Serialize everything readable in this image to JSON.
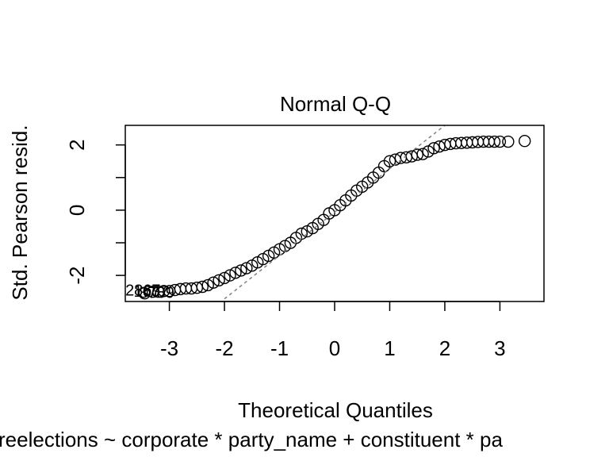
{
  "chart_data": {
    "type": "scatter",
    "title": "Normal Q-Q",
    "xlabel": "Theoretical Quantiles",
    "ylabel": "Std. Pearson resid.",
    "subtitle": "reelections ~ corporate * party_name + constituent * pa",
    "xlim": [
      -3.8,
      3.8
    ],
    "ylim": [
      -2.8,
      2.6
    ],
    "x_ticks": [
      -3,
      -2,
      -1,
      0,
      1,
      2,
      3
    ],
    "x_tick_labels": [
      "-3",
      "-2",
      "-1",
      "0",
      "1",
      "2",
      "3"
    ],
    "y_ticks": [
      -2,
      -1,
      0,
      1,
      2
    ],
    "y_tick_labels": [
      "-2",
      "0",
      "2"
    ],
    "y_tick_label_values": [
      -2,
      0,
      2
    ],
    "reference_line": {
      "x": [
        -2.0,
        2.0
      ],
      "y": [
        -2.72,
        2.65
      ]
    },
    "point_labels": [
      {
        "text": "2867",
        "x": -3.45,
        "y": -2.45
      },
      {
        "text": "3789",
        "x": -3.2,
        "y": -2.52
      },
      {
        "text": "1637",
        "x": -3.3,
        "y": -2.48
      }
    ],
    "series": [
      {
        "points": [
          [
            -3.45,
            -2.55
          ],
          [
            -3.3,
            -2.5
          ],
          [
            -3.2,
            -2.5
          ],
          [
            -3.1,
            -2.48
          ],
          [
            -3.0,
            -2.48
          ],
          [
            -2.9,
            -2.45
          ],
          [
            -2.8,
            -2.42
          ],
          [
            -2.7,
            -2.4
          ],
          [
            -2.6,
            -2.4
          ],
          [
            -2.5,
            -2.38
          ],
          [
            -2.4,
            -2.35
          ],
          [
            -2.3,
            -2.3
          ],
          [
            -2.2,
            -2.22
          ],
          [
            -2.1,
            -2.15
          ],
          [
            -2.0,
            -2.08
          ],
          [
            -1.9,
            -2.0
          ],
          [
            -1.8,
            -1.92
          ],
          [
            -1.7,
            -1.85
          ],
          [
            -1.6,
            -1.78
          ],
          [
            -1.5,
            -1.7
          ],
          [
            -1.4,
            -1.6
          ],
          [
            -1.3,
            -1.5
          ],
          [
            -1.2,
            -1.4
          ],
          [
            -1.1,
            -1.3
          ],
          [
            -1.0,
            -1.2
          ],
          [
            -0.9,
            -1.1
          ],
          [
            -0.8,
            -1.0
          ],
          [
            -0.7,
            -0.85
          ],
          [
            -0.6,
            -0.72
          ],
          [
            -0.5,
            -0.65
          ],
          [
            -0.4,
            -0.55
          ],
          [
            -0.3,
            -0.42
          ],
          [
            -0.2,
            -0.3
          ],
          [
            -0.1,
            -0.1
          ],
          [
            0.0,
            0.0
          ],
          [
            0.1,
            0.15
          ],
          [
            0.2,
            0.3
          ],
          [
            0.3,
            0.45
          ],
          [
            0.4,
            0.6
          ],
          [
            0.5,
            0.72
          ],
          [
            0.6,
            0.85
          ],
          [
            0.7,
            1.0
          ],
          [
            0.8,
            1.15
          ],
          [
            0.9,
            1.35
          ],
          [
            1.0,
            1.5
          ],
          [
            1.1,
            1.55
          ],
          [
            1.2,
            1.6
          ],
          [
            1.3,
            1.62
          ],
          [
            1.4,
            1.65
          ],
          [
            1.5,
            1.7
          ],
          [
            1.6,
            1.72
          ],
          [
            1.7,
            1.8
          ],
          [
            1.8,
            1.9
          ],
          [
            1.9,
            1.95
          ],
          [
            2.0,
            2.0
          ],
          [
            2.1,
            2.03
          ],
          [
            2.2,
            2.05
          ],
          [
            2.3,
            2.06
          ],
          [
            2.4,
            2.07
          ],
          [
            2.5,
            2.08
          ],
          [
            2.6,
            2.09
          ],
          [
            2.7,
            2.1
          ],
          [
            2.8,
            2.1
          ],
          [
            2.9,
            2.1
          ],
          [
            3.0,
            2.1
          ],
          [
            3.15,
            2.1
          ],
          [
            3.45,
            2.12
          ]
        ]
      }
    ],
    "point_color": "#000000",
    "line_color": "#808080"
  }
}
